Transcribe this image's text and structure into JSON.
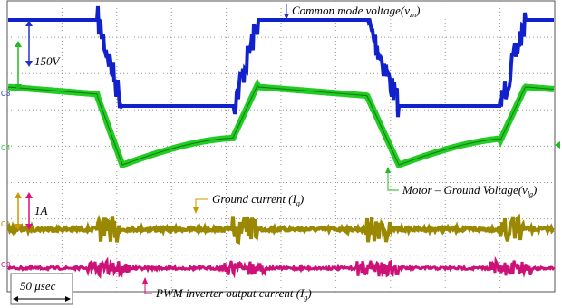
{
  "channels": {
    "c3": "C3",
    "c4": "C4",
    "c1": "C1",
    "c2": "C2"
  },
  "annotations": {
    "common_mode": {
      "prefix": "Common mode voltage(v",
      "sub": "zn",
      "suffix": ")"
    },
    "motor_ground": {
      "prefix": "Motor – Ground Voltage(v",
      "sub": "lg",
      "suffix": ")"
    },
    "ground_current": {
      "prefix": "Ground current (I",
      "sub": "g",
      "suffix": ")"
    },
    "pwm_current": {
      "prefix": "PWM inverter output current (I",
      "sub": "g",
      "suffix": ")"
    }
  },
  "scales": {
    "voltage": "150V",
    "current": "1A",
    "time": "50 μsec"
  }
}
